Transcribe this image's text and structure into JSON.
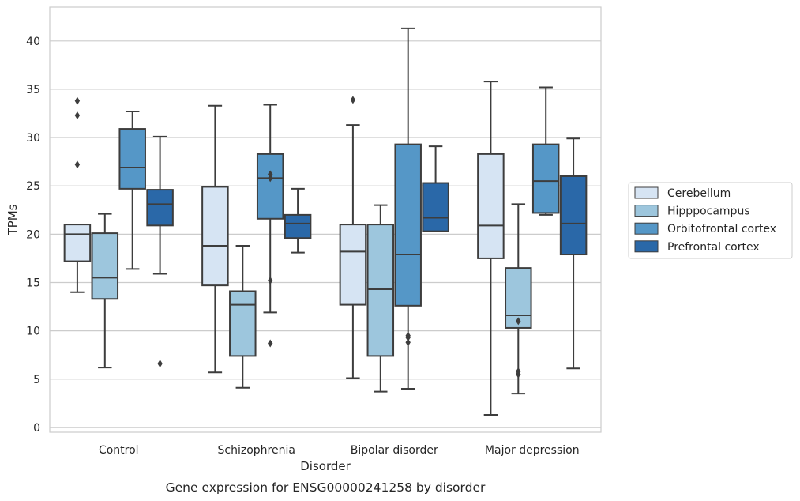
{
  "chart_data": {
    "type": "box",
    "title": "Gene expression for ENSG00000241258 by disorder",
    "xlabel": "Disorder",
    "ylabel": "TPMs",
    "ylim": [
      -0.5,
      43.5
    ],
    "yticks": [
      0,
      5,
      10,
      15,
      20,
      25,
      30,
      35,
      40
    ],
    "grid": "horizontal",
    "legend_position": "right",
    "categories": [
      "Control",
      "Schizophrenia",
      "Bipolar disorder",
      "Major depression"
    ],
    "series": [
      {
        "name": "Cerebellum",
        "color": "#d6e4f3",
        "boxes": [
          {
            "whislo": 14.0,
            "q1": 17.2,
            "med": 20.0,
            "q3": 21.0,
            "whishi": 21.0,
            "fliers": [
              27.2,
              32.3,
              33.8
            ]
          },
          {
            "whislo": 5.7,
            "q1": 14.7,
            "med": 18.8,
            "q3": 24.9,
            "whishi": 33.3,
            "fliers": []
          },
          {
            "whislo": 5.1,
            "q1": 12.7,
            "med": 18.2,
            "q3": 21.0,
            "whishi": 31.3,
            "fliers": [
              33.9
            ]
          },
          {
            "whislo": 1.3,
            "q1": 17.5,
            "med": 20.9,
            "q3": 28.3,
            "whishi": 35.8,
            "fliers": []
          }
        ]
      },
      {
        "name": "Hipppocampus",
        "color": "#9dc6dd",
        "boxes": [
          {
            "whislo": 6.2,
            "q1": 13.3,
            "med": 15.5,
            "q3": 20.1,
            "whishi": 22.1,
            "fliers": []
          },
          {
            "whislo": 4.1,
            "q1": 7.4,
            "med": 12.7,
            "q3": 14.1,
            "whishi": 18.8,
            "fliers": []
          },
          {
            "whislo": 3.7,
            "q1": 7.4,
            "med": 14.3,
            "q3": 21.0,
            "whishi": 23.0,
            "fliers": []
          },
          {
            "whislo": 3.5,
            "q1": 10.3,
            "med": 11.6,
            "q3": 16.5,
            "whishi": 23.1,
            "fliers": [
              5.5,
              5.8,
              11.0
            ]
          }
        ]
      },
      {
        "name": "Orbitofrontal cortex",
        "color": "#5597c7",
        "boxes": [
          {
            "whislo": 16.4,
            "q1": 24.7,
            "med": 26.9,
            "q3": 30.9,
            "whishi": 32.7,
            "fliers": []
          },
          {
            "whislo": 11.9,
            "q1": 21.6,
            "med": 25.8,
            "q3": 28.3,
            "whishi": 33.4,
            "fliers": [
              8.7,
              15.2,
              25.8,
              26.2
            ]
          },
          {
            "whislo": 4.0,
            "q1": 12.6,
            "med": 17.9,
            "q3": 29.3,
            "whishi": 41.3,
            "fliers": [
              8.8,
              9.3,
              9.5
            ]
          },
          {
            "whislo": 22.0,
            "q1": 22.2,
            "med": 25.5,
            "q3": 29.3,
            "whishi": 35.2,
            "fliers": []
          }
        ]
      },
      {
        "name": "Prefrontal cortex",
        "color": "#2a68a8",
        "boxes": [
          {
            "whislo": 15.9,
            "q1": 20.9,
            "med": 23.1,
            "q3": 24.6,
            "whishi": 30.1,
            "fliers": [
              6.6
            ]
          },
          {
            "whislo": 18.1,
            "q1": 19.6,
            "med": 21.1,
            "q3": 22.0,
            "whishi": 24.7,
            "fliers": []
          },
          {
            "whislo": 20.3,
            "q1": 20.3,
            "med": 21.7,
            "q3": 25.3,
            "whishi": 29.1,
            "fliers": []
          },
          {
            "whislo": 6.1,
            "q1": 17.9,
            "med": 21.1,
            "q3": 26.0,
            "whishi": 29.9,
            "fliers": []
          }
        ]
      }
    ]
  }
}
